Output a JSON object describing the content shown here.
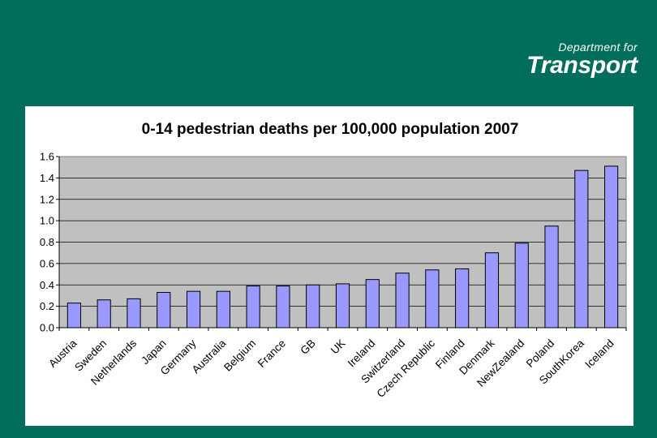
{
  "logo": {
    "line1": "Department for",
    "line2": "Transport"
  },
  "colors": {
    "background": "#006e5b",
    "plot": "#c0c0c0",
    "bar": "#9999ff",
    "bar_stroke": "#000000"
  },
  "chart_data": {
    "type": "bar",
    "title": "0-14 pedestrian deaths per 100,000 population 2007",
    "xlabel": "",
    "ylabel": "",
    "ylim": [
      0,
      1.6
    ],
    "yticks": [
      "0.0",
      "0.2",
      "0.4",
      "0.6",
      "0.8",
      "1.0",
      "1.2",
      "1.4",
      "1.6"
    ],
    "grid": true,
    "categories": [
      "Austria",
      "Sweden",
      "Netherlands",
      "Japan",
      "Germany",
      "Australia",
      "Belgium",
      "France",
      "GB",
      "UK",
      "Ireland",
      "Switzerland",
      "Czech Republic",
      "Finland",
      "Denmark",
      "NewZealand",
      "Poland",
      "SouthKorea",
      "Iceland"
    ],
    "values": [
      0.23,
      0.26,
      0.27,
      0.33,
      0.34,
      0.34,
      0.39,
      0.39,
      0.4,
      0.41,
      0.45,
      0.51,
      0.54,
      0.55,
      0.7,
      0.79,
      0.95,
      1.47,
      1.51
    ]
  }
}
